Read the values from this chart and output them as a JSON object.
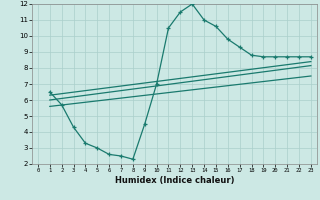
{
  "title": "",
  "xlabel": "Humidex (Indice chaleur)",
  "background_color": "#cce8e4",
  "grid_color": "#aacfcb",
  "line_color": "#1a7a6e",
  "xlim": [
    -0.5,
    23.5
  ],
  "ylim": [
    2,
    12
  ],
  "xticks": [
    0,
    1,
    2,
    3,
    4,
    5,
    6,
    7,
    8,
    9,
    10,
    11,
    12,
    13,
    14,
    15,
    16,
    17,
    18,
    19,
    20,
    21,
    22,
    23
  ],
  "yticks": [
    2,
    3,
    4,
    5,
    6,
    7,
    8,
    9,
    10,
    11,
    12
  ],
  "line1_x": [
    1,
    2,
    3,
    4,
    5,
    6,
    7,
    8,
    9,
    10,
    11,
    12,
    13,
    14,
    15,
    16,
    17,
    18,
    19,
    20,
    21,
    22,
    23
  ],
  "line1_y": [
    6.5,
    5.7,
    4.3,
    3.3,
    3.0,
    2.6,
    2.5,
    2.3,
    4.5,
    7.0,
    10.5,
    11.5,
    12.0,
    11.0,
    10.6,
    9.8,
    9.3,
    8.8,
    8.7,
    8.7,
    8.7,
    8.7,
    8.7
  ],
  "line2_x": [
    1,
    23
  ],
  "line2_y": [
    6.3,
    8.4
  ],
  "line3_x": [
    1,
    23
  ],
  "line3_y": [
    6.0,
    8.15
  ],
  "line4_x": [
    1,
    23
  ],
  "line4_y": [
    5.6,
    7.5
  ]
}
